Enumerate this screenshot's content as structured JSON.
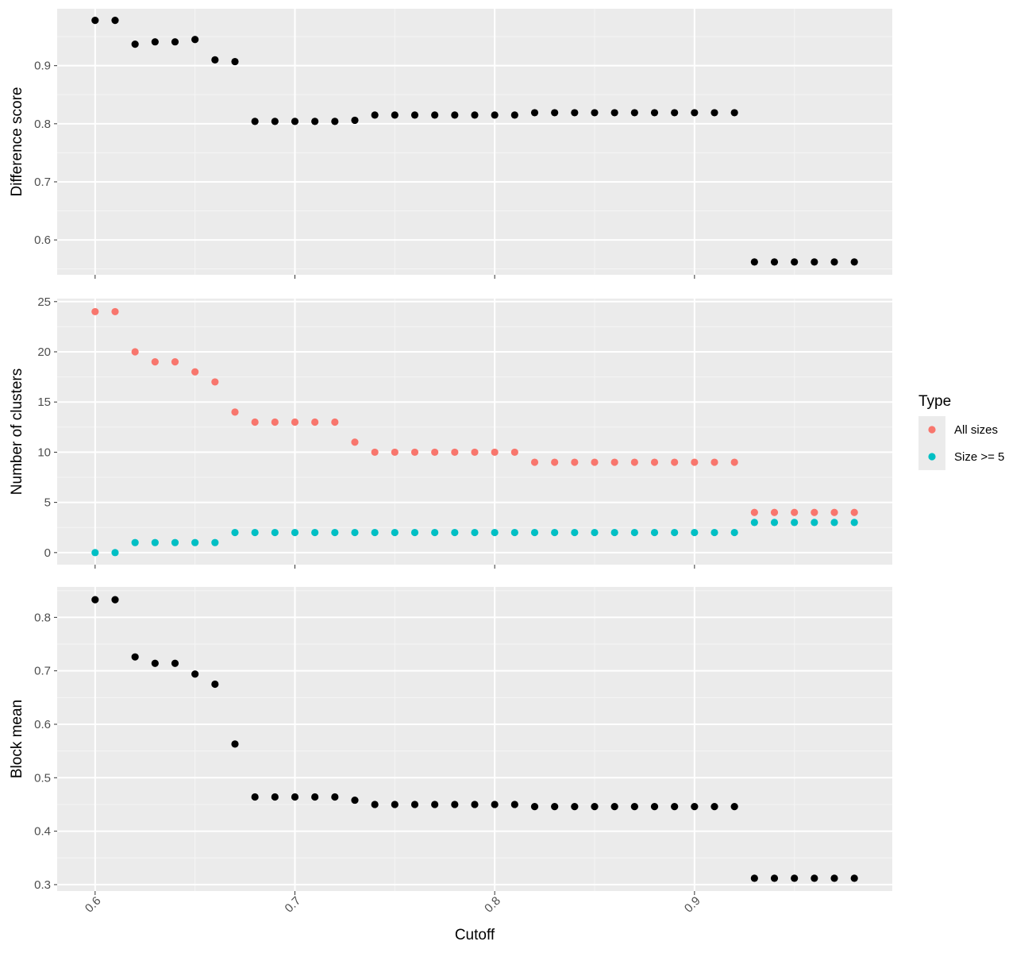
{
  "chart_data": {
    "type": "scatter",
    "xlabel": "Cutoff",
    "xlim": [
      0.581,
      0.999
    ],
    "xticks": [
      0.6,
      0.7,
      0.8,
      0.9
    ],
    "xtick_labels": [
      "0.6",
      "0.7",
      "0.8",
      "0.9"
    ],
    "x": [
      0.6,
      0.61,
      0.62,
      0.63,
      0.64,
      0.65,
      0.66,
      0.67,
      0.68,
      0.69,
      0.7,
      0.71,
      0.72,
      0.73,
      0.74,
      0.75,
      0.76,
      0.77,
      0.78,
      0.79,
      0.8,
      0.81,
      0.82,
      0.83,
      0.84,
      0.85,
      0.86,
      0.87,
      0.88,
      0.89,
      0.9,
      0.91,
      0.92,
      0.93,
      0.94,
      0.95,
      0.96,
      0.97,
      0.98
    ],
    "grid": true,
    "legend_position": "right",
    "legend": {
      "title": "Type",
      "entries": [
        {
          "label": "All sizes",
          "color": "#F8766D"
        },
        {
          "label": "Size >= 5",
          "color": "#00BFC4"
        }
      ]
    },
    "panels": [
      {
        "ylabel": "Difference score",
        "ylim": [
          0.54,
          0.998
        ],
        "yticks": [
          0.6,
          0.7,
          0.8,
          0.9
        ],
        "ytick_labels": [
          "0.6",
          "0.7",
          "0.8",
          "0.9"
        ],
        "series": [
          {
            "color": "#000000",
            "values": [
              0.978,
              0.978,
              0.937,
              0.941,
              0.941,
              0.945,
              0.91,
              0.907,
              0.804,
              0.804,
              0.804,
              0.804,
              0.804,
              0.806,
              0.815,
              0.815,
              0.815,
              0.815,
              0.815,
              0.815,
              0.815,
              0.815,
              0.819,
              0.819,
              0.819,
              0.819,
              0.819,
              0.819,
              0.819,
              0.819,
              0.819,
              0.819,
              0.819,
              0.562,
              0.562,
              0.562,
              0.562,
              0.562,
              0.562
            ]
          }
        ]
      },
      {
        "ylabel": "Number of clusters",
        "ylim": [
          -1.2,
          25.3
        ],
        "yticks": [
          0,
          5,
          10,
          15,
          20,
          25
        ],
        "ytick_labels": [
          "0",
          "5",
          "10",
          "15",
          "20",
          "25"
        ],
        "series": [
          {
            "name": "All sizes",
            "color": "#F8766D",
            "values": [
              24,
              24,
              20,
              19,
              19,
              18,
              17,
              14,
              13,
              13,
              13,
              13,
              13,
              11,
              10,
              10,
              10,
              10,
              10,
              10,
              10,
              10,
              9,
              9,
              9,
              9,
              9,
              9,
              9,
              9,
              9,
              9,
              9,
              4,
              4,
              4,
              4,
              4,
              4
            ]
          },
          {
            "name": "Size >= 5",
            "color": "#00BFC4",
            "values": [
              0,
              0,
              1,
              1,
              1,
              1,
              1,
              2,
              2,
              2,
              2,
              2,
              2,
              2,
              2,
              2,
              2,
              2,
              2,
              2,
              2,
              2,
              2,
              2,
              2,
              2,
              2,
              2,
              2,
              2,
              2,
              2,
              2,
              3,
              3,
              3,
              3,
              3,
              3
            ]
          }
        ]
      },
      {
        "ylabel": "Block mean",
        "ylim": [
          0.288,
          0.857
        ],
        "yticks": [
          0.3,
          0.4,
          0.5,
          0.6,
          0.7,
          0.8
        ],
        "ytick_labels": [
          "0.3",
          "0.4",
          "0.5",
          "0.6",
          "0.7",
          "0.8"
        ],
        "series": [
          {
            "color": "#000000",
            "values": [
              0.833,
              0.833,
              0.726,
              0.714,
              0.714,
              0.694,
              0.675,
              0.563,
              0.464,
              0.464,
              0.464,
              0.464,
              0.464,
              0.458,
              0.45,
              0.45,
              0.45,
              0.45,
              0.45,
              0.45,
              0.45,
              0.45,
              0.446,
              0.446,
              0.446,
              0.446,
              0.446,
              0.446,
              0.446,
              0.446,
              0.446,
              0.446,
              0.446,
              0.312,
              0.312,
              0.312,
              0.312,
              0.312,
              0.312
            ]
          }
        ]
      }
    ]
  }
}
